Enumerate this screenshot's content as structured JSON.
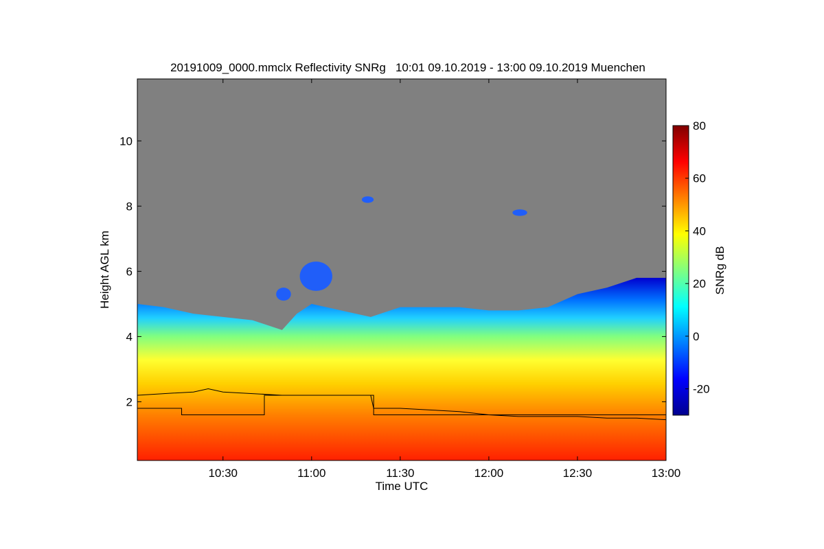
{
  "chart_data": {
    "type": "heatmap",
    "title": "20191009_0000.mmclx Reflectivity SNRg   10:01 09.10.2019 - 13:00 09.10.2019 Muenchen",
    "xlabel": "Time UTC",
    "ylabel": "Height AGL km",
    "xlim": [
      "10:01",
      "13:00"
    ],
    "ylim": [
      0.2,
      11.9
    ],
    "x_ticks": [
      "10:30",
      "11:00",
      "11:30",
      "12:00",
      "12:30",
      "13:00"
    ],
    "y_ticks": [
      "2",
      "4",
      "6",
      "8",
      "10"
    ],
    "background_color": "#808080",
    "colorbar": {
      "label": "SNRg dB",
      "range": [
        -30,
        80
      ],
      "ticks": [
        "-20",
        "0",
        "20",
        "40",
        "60",
        "80"
      ],
      "colormap": [
        "#00008f",
        "#0000ff",
        "#0080ff",
        "#00ffff",
        "#80ff80",
        "#ffff00",
        "#ff8000",
        "#ff0000",
        "#800000"
      ]
    },
    "cloud_top_height_km": [
      {
        "time": "10:01",
        "top": 5.0
      },
      {
        "time": "10:10",
        "top": 4.9
      },
      {
        "time": "10:20",
        "top": 4.7
      },
      {
        "time": "10:30",
        "top": 4.6
      },
      {
        "time": "10:40",
        "top": 4.5
      },
      {
        "time": "10:50",
        "top": 4.2
      },
      {
        "time": "10:55",
        "top": 4.7
      },
      {
        "time": "11:00",
        "top": 5.0
      },
      {
        "time": "11:10",
        "top": 4.8
      },
      {
        "time": "11:20",
        "top": 4.6
      },
      {
        "time": "11:30",
        "top": 4.9
      },
      {
        "time": "11:40",
        "top": 4.9
      },
      {
        "time": "11:50",
        "top": 4.9
      },
      {
        "time": "12:00",
        "top": 4.8
      },
      {
        "time": "12:10",
        "top": 4.8
      },
      {
        "time": "12:20",
        "top": 4.9
      },
      {
        "time": "12:30",
        "top": 5.3
      },
      {
        "time": "12:40",
        "top": 5.5
      },
      {
        "time": "12:50",
        "top": 5.8
      },
      {
        "time": "13:00",
        "top": 5.8
      }
    ],
    "cloud_patches": [
      {
        "time_start": "10:56",
        "time_end": "11:07",
        "height_low": 5.4,
        "height_high": 6.3
      },
      {
        "time_start": "10:48",
        "time_end": "10:53",
        "height_low": 5.1,
        "height_high": 5.5
      },
      {
        "time_start": "11:17",
        "time_end": "11:21",
        "height_low": 8.1,
        "height_high": 8.3
      },
      {
        "time_start": "12:08",
        "time_end": "12:13",
        "height_low": 7.7,
        "height_high": 7.9
      }
    ],
    "series": [
      {
        "x": [
          "10:01",
          "10:10",
          "10:20",
          "10:25",
          "10:30",
          "10:40",
          "10:50",
          "11:00",
          "11:10",
          "11:20",
          "11:21",
          "11:30",
          "11:40",
          "11:50",
          "12:00",
          "12:10",
          "12:20",
          "12:30",
          "12:40",
          "12:50",
          "13:00"
        ],
        "y": [
          2.2,
          2.25,
          2.3,
          2.4,
          2.3,
          2.25,
          2.2,
          2.2,
          2.2,
          2.2,
          1.8,
          1.8,
          1.75,
          1.7,
          1.6,
          1.55,
          1.55,
          1.55,
          1.5,
          1.5,
          1.45
        ]
      },
      {
        "x": [
          "10:01",
          "10:16",
          "10:16",
          "10:44",
          "10:44",
          "11:21",
          "11:21",
          "13:00"
        ],
        "y": [
          1.8,
          1.8,
          1.6,
          1.6,
          2.2,
          2.2,
          1.6,
          1.6
        ]
      }
    ]
  }
}
